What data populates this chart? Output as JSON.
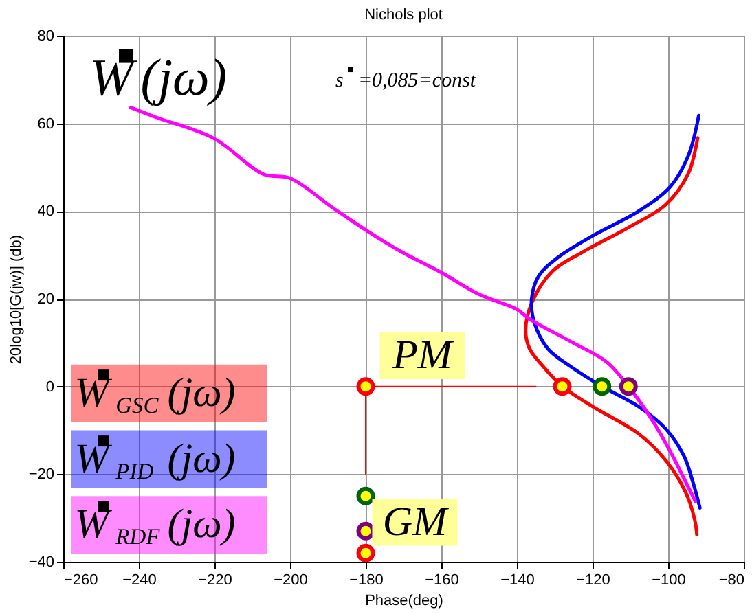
{
  "chart_data": {
    "type": "line",
    "title": "Nichols plot",
    "xlabel": "Phase(deg)",
    "ylabel": "20log10[G(jw)]  (db)",
    "xlim": [
      -260,
      -80
    ],
    "ylim": [
      -40,
      80
    ],
    "xticks": [
      -260,
      -240,
      -220,
      -200,
      -180,
      -160,
      -140,
      -120,
      -100,
      -80
    ],
    "yticks": [
      -40,
      -20,
      0,
      20,
      40,
      60,
      80
    ],
    "grid": true,
    "legend": "bottom left",
    "line_style": "solid",
    "series": [
      {
        "name": "W$^{■}$$_{GSC}$(jω)",
        "color": "#ff0000",
        "x": [
          -92.2,
          -94.6,
          -100.6,
          -110.2,
          -122.3,
          -130.7,
          -136.1,
          -137.7,
          -136.7,
          -133.1,
          -128,
          -119.9,
          -107.8,
          -100.6,
          -95.4,
          -93,
          -92.4
        ],
        "values": [
          56.7,
          48.7,
          41.5,
          36.4,
          30.8,
          26.2,
          19,
          12.8,
          8.7,
          4.6,
          0,
          -4.6,
          -10.8,
          -16.9,
          -24.1,
          -30.3,
          -33.8
        ]
      },
      {
        "name": "W$^{■}$$_{PID}$(jω)",
        "color": "#0000ff",
        "x": [
          -91.9,
          -94.6,
          -99.4,
          -107.8,
          -119.9,
          -129.5,
          -134.3,
          -136.1,
          -135.5,
          -131.9,
          -125.9,
          -117.5,
          -107.8,
          -100.6,
          -95.8,
          -93.4,
          -91.6
        ],
        "values": [
          61.8,
          52.8,
          45.6,
          40,
          34.4,
          29.2,
          25.1,
          20,
          14.9,
          8.7,
          4.6,
          0,
          -4.6,
          -9.7,
          -15.9,
          -22,
          -27.7
        ]
      },
      {
        "name": "W$^{■}$$_{RDF}$(jω)",
        "color": "#ff00ff",
        "x": [
          -242.1,
          -235.5,
          -220.2,
          -207,
          -200,
          -188.8,
          -180,
          -170.5,
          -160,
          -150,
          -140,
          -136.7,
          -125.9,
          -116.3,
          -110.5,
          -104.2,
          -99.4,
          -95.8,
          -92.8
        ],
        "values": [
          63.6,
          61.4,
          56.6,
          48.4,
          47.5,
          40.8,
          35.7,
          30.7,
          26,
          21,
          17.6,
          15.4,
          10.3,
          5.6,
          0,
          -7.7,
          -14.9,
          -21,
          -26.2
        ]
      },
      {
        "type": "line",
        "color": "#ff0000",
        "x": [
          -180,
          -135
        ],
        "values": [
          0,
          0
        ]
      },
      {
        "type": "line",
        "color": "#ff0000",
        "x": [
          -180,
          -180
        ],
        "values": [
          0,
          -20
        ]
      },
      {
        "type": "scatter",
        "marker": "circle",
        "color": "#ffff00",
        "x": [
          -180,
          -128,
          -117.5,
          -110.5,
          -180,
          -180,
          -180
        ],
        "values": [
          0,
          0,
          0,
          0,
          -25,
          -33,
          -38
        ],
        "colors": [
          "#ff0000",
          "#ff0000",
          "#006400",
          "#800080",
          "#006400",
          "#800080",
          "#ff0000"
        ]
      }
    ],
    "annotations": [
      "W$^{■}$(jω)",
      "s$^{■}$=0,085=const",
      "PM",
      "GM"
    ]
  }
}
